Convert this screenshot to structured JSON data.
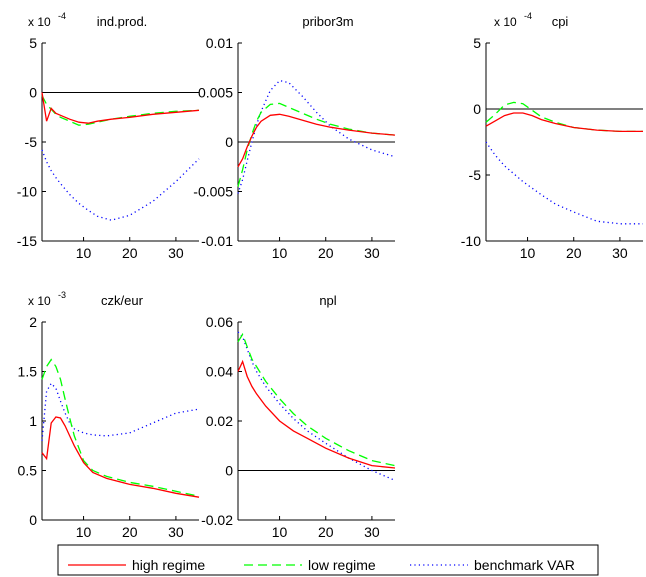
{
  "colors": {
    "high": "#ff0000",
    "low": "#00ff00",
    "bench": "#0000ff",
    "axis": "#000000",
    "zero": "#000000"
  },
  "legend": {
    "items": [
      {
        "key": "high",
        "label": "high regime",
        "style": "solid"
      },
      {
        "key": "low",
        "label": "low regime",
        "style": "dashed"
      },
      {
        "key": "bench",
        "label": "benchmark VAR",
        "style": "dotted"
      }
    ]
  },
  "chart_data": [
    {
      "type": "line",
      "title": "ind.prod.",
      "sci_base": "x 10",
      "sci_exp": "-4",
      "xlim": [
        1,
        35
      ],
      "ylim": [
        -15,
        5
      ],
      "xticks": [
        10,
        20,
        30
      ],
      "yticks": [
        -15,
        -10,
        -5,
        0,
        5
      ],
      "x": [
        1,
        2,
        3,
        4,
        5,
        7,
        9,
        11,
        13,
        16,
        20,
        25,
        30,
        35
      ],
      "series": [
        {
          "key": "high",
          "values": [
            0,
            -2.9,
            -1.6,
            -2.1,
            -2.3,
            -2.7,
            -3.0,
            -3.1,
            -2.9,
            -2.7,
            -2.5,
            -2.2,
            -2.0,
            -1.8
          ]
        },
        {
          "key": "low",
          "values": [
            -0.3,
            -1.2,
            -1.7,
            -2.2,
            -2.5,
            -2.9,
            -3.3,
            -3.2,
            -3.0,
            -2.7,
            -2.4,
            -2.1,
            -1.9,
            -1.8
          ]
        },
        {
          "key": "bench",
          "values": [
            -5.8,
            -7.0,
            -7.9,
            -8.6,
            -9.2,
            -10.3,
            -11.2,
            -11.9,
            -12.5,
            -12.9,
            -12.4,
            -11.0,
            -9.0,
            -6.7
          ]
        }
      ]
    },
    {
      "type": "line",
      "title": "pribor3m",
      "xlim": [
        1,
        35
      ],
      "ylim": [
        -0.01,
        0.01
      ],
      "xticks": [
        10,
        20,
        30
      ],
      "yticks": [
        -0.01,
        -0.005,
        0,
        0.005,
        0.01
      ],
      "ytick_labels": [
        "-0.01",
        "-0.005",
        "0",
        "0.005",
        "0.01"
      ],
      "x": [
        1,
        2,
        3,
        4,
        5,
        6,
        8,
        10,
        12,
        15,
        18,
        21,
        25,
        30,
        35
      ],
      "series": [
        {
          "key": "high",
          "values": [
            -0.0025,
            -0.0017,
            -0.0005,
            0.0006,
            0.0015,
            0.0021,
            0.0027,
            0.0028,
            0.0026,
            0.0022,
            0.0018,
            0.0015,
            0.0012,
            0.0009,
            0.0007
          ]
        },
        {
          "key": "low",
          "values": [
            -0.0045,
            -0.0028,
            -0.0008,
            0.0008,
            0.0021,
            0.003,
            0.0038,
            0.0039,
            0.0035,
            0.0029,
            0.0023,
            0.0018,
            0.0013,
            0.0009,
            0.0007
          ]
        },
        {
          "key": "bench",
          "values": [
            -0.0052,
            -0.0038,
            -0.0019,
            0.0,
            0.0017,
            0.0031,
            0.0052,
            0.0062,
            0.006,
            0.0046,
            0.003,
            0.0016,
            0.0003,
            -0.0008,
            -0.0015
          ]
        }
      ]
    },
    {
      "type": "line",
      "title": "cpi",
      "sci_base": "x 10",
      "sci_exp": "-4",
      "xlim": [
        1,
        35
      ],
      "ylim": [
        -10,
        5
      ],
      "xticks": [
        10,
        20,
        30
      ],
      "yticks": [
        -10,
        -5,
        0,
        5
      ],
      "x": [
        1,
        3,
        5,
        7,
        9,
        11,
        13,
        16,
        20,
        25,
        30,
        35
      ],
      "series": [
        {
          "key": "high",
          "values": [
            -1.3,
            -0.9,
            -0.5,
            -0.3,
            -0.3,
            -0.5,
            -0.8,
            -1.1,
            -1.4,
            -1.6,
            -1.7,
            -1.7
          ]
        },
        {
          "key": "low",
          "values": [
            -1.0,
            -0.4,
            0.3,
            0.5,
            0.4,
            -0.1,
            -0.6,
            -1.0,
            -1.4,
            -1.6,
            -1.7,
            -1.7
          ]
        },
        {
          "key": "bench",
          "values": [
            -2.5,
            -3.5,
            -4.3,
            -4.9,
            -5.5,
            -6.0,
            -6.5,
            -7.2,
            -7.8,
            -8.5,
            -8.7,
            -8.7
          ]
        }
      ]
    },
    {
      "type": "line",
      "title": "czk/eur",
      "sci_base": "x 10",
      "sci_exp": "-3",
      "xlim": [
        1,
        35
      ],
      "ylim": [
        0,
        2
      ],
      "xticks": [
        10,
        20,
        30
      ],
      "yticks": [
        0,
        0.5,
        1,
        1.5,
        2
      ],
      "ytick_labels": [
        "0",
        "0.5",
        "1",
        "1.5",
        "2"
      ],
      "x": [
        1,
        2,
        3,
        4,
        5,
        6,
        7,
        8,
        10,
        12,
        15,
        20,
        25,
        30,
        35
      ],
      "series": [
        {
          "key": "high",
          "values": [
            0.68,
            0.62,
            0.98,
            1.04,
            1.03,
            0.95,
            0.85,
            0.75,
            0.58,
            0.48,
            0.42,
            0.36,
            0.32,
            0.27,
            0.23
          ]
        },
        {
          "key": "low",
          "values": [
            1.42,
            1.55,
            1.62,
            1.55,
            1.42,
            1.22,
            1.03,
            0.85,
            0.6,
            0.5,
            0.44,
            0.38,
            0.34,
            0.29,
            0.24
          ]
        },
        {
          "key": "bench",
          "values": [
            0.8,
            1.3,
            1.38,
            1.33,
            1.2,
            1.08,
            0.98,
            0.92,
            0.88,
            0.86,
            0.85,
            0.88,
            0.98,
            1.08,
            1.12
          ]
        }
      ]
    },
    {
      "type": "line",
      "title": "npl",
      "xlim": [
        1,
        35
      ],
      "ylim": [
        -0.02,
        0.06
      ],
      "xticks": [
        10,
        20,
        30
      ],
      "yticks": [
        -0.02,
        0,
        0.02,
        0.04,
        0.06
      ],
      "ytick_labels": [
        "-0.02",
        "0",
        "0.02",
        "0.04",
        "0.06"
      ],
      "x": [
        1,
        2,
        3,
        4,
        5,
        7,
        10,
        13,
        16,
        20,
        25,
        30,
        35
      ],
      "series": [
        {
          "key": "high",
          "values": [
            0.04,
            0.044,
            0.038,
            0.034,
            0.031,
            0.026,
            0.02,
            0.016,
            0.013,
            0.009,
            0.005,
            0.002,
            0.001
          ]
        },
        {
          "key": "low",
          "values": [
            0.052,
            0.055,
            0.05,
            0.045,
            0.042,
            0.036,
            0.029,
            0.023,
            0.018,
            0.013,
            0.008,
            0.004,
            0.002
          ]
        },
        {
          "key": "bench",
          "values": [
            0.056,
            0.054,
            0.049,
            0.044,
            0.04,
            0.034,
            0.027,
            0.021,
            0.016,
            0.011,
            0.005,
            0.0,
            -0.004
          ]
        }
      ]
    }
  ]
}
